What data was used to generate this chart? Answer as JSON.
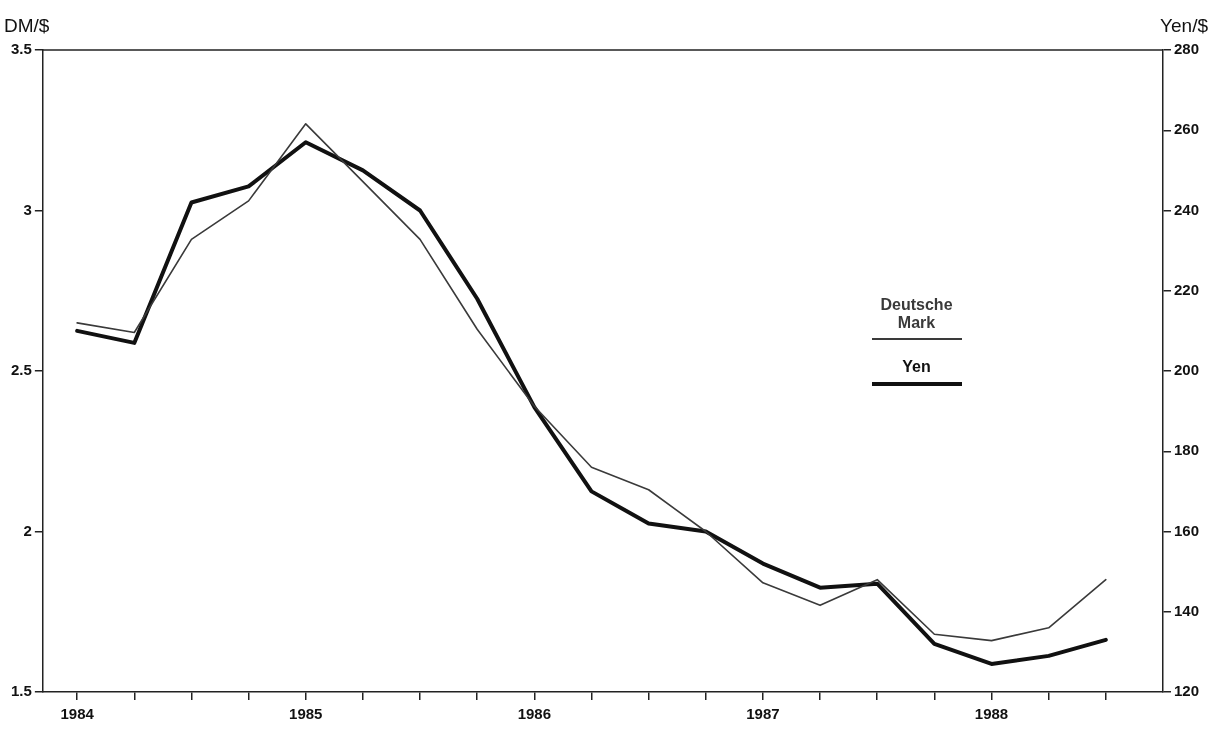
{
  "chart_data": {
    "type": "line",
    "ylabel": "DM/$",
    "y2label": "Yen/$",
    "x": [
      1984,
      1984.25,
      1984.5,
      1984.75,
      1985,
      1985.25,
      1985.5,
      1985.75,
      1986,
      1986.25,
      1986.5,
      1986.75,
      1987,
      1987.25,
      1987.5,
      1987.75,
      1988,
      1988.25,
      1988.5
    ],
    "series": [
      {
        "name": "Deutsche Mark",
        "color": "#3a3a3a",
        "values": [
          2.65,
          2.62,
          2.91,
          3.03,
          3.27,
          3.09,
          2.91,
          2.63,
          2.39,
          2.2,
          2.13,
          2.0,
          1.84,
          1.77,
          1.85,
          1.68,
          1.66,
          1.7,
          1.85
        ]
      },
      {
        "name": "Yen",
        "color": "#111111",
        "axis": "y2",
        "values": [
          210,
          207,
          242,
          246,
          257,
          250,
          240,
          218,
          191,
          170,
          162,
          160,
          152,
          146,
          147,
          132,
          127,
          129,
          133
        ]
      }
    ],
    "xlim": [
      1983.85,
      1988.75
    ],
    "xticks": [
      1984,
      {
        "value": 1984.25,
        "label": null
      },
      {
        "value": 1984.5,
        "label": null
      },
      {
        "value": 1984.75,
        "label": null
      },
      1985,
      {
        "value": 1985.25,
        "label": null
      },
      {
        "value": 1985.5,
        "label": null
      },
      {
        "value": 1985.75,
        "label": null
      },
      1986,
      {
        "value": 1986.25,
        "label": null
      },
      {
        "value": 1986.5,
        "label": null
      },
      {
        "value": 1986.75,
        "label": null
      },
      1987,
      {
        "value": 1987.25,
        "label": null
      },
      {
        "value": 1987.5,
        "label": null
      },
      {
        "value": 1987.75,
        "label": null
      },
      1988,
      {
        "value": 1988.25,
        "label": null
      },
      {
        "value": 1988.5,
        "label": null
      }
    ],
    "ylim": [
      1.5,
      3.5
    ],
    "yticks": [
      1.5,
      2,
      2.5,
      3,
      3.5
    ],
    "y2lim": [
      120,
      280
    ],
    "y2ticks": [
      120,
      140,
      160,
      180,
      200,
      220,
      240,
      260,
      280
    ],
    "grid": false,
    "legend": "right",
    "marker": "none",
    "line_style": "solid"
  }
}
